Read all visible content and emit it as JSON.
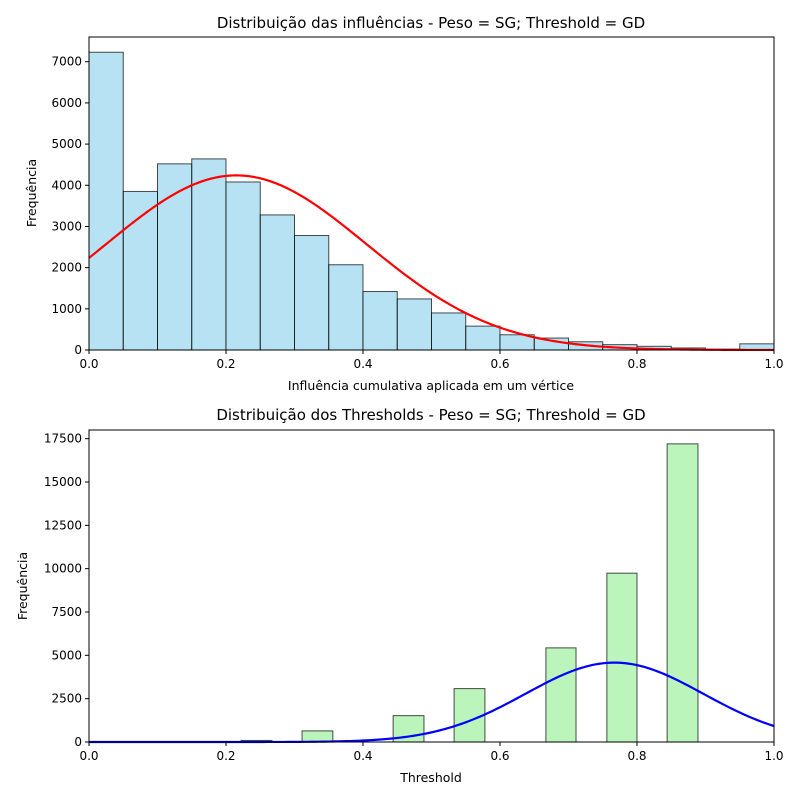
{
  "chart_data": [
    {
      "type": "bar",
      "title": "Distribuição das influências - Peso = SG; Threshold = GD",
      "xlabel": "Influência cumulativa aplicada em um vértice",
      "ylabel": "Frequência",
      "xlim": [
        0,
        1.0
      ],
      "ylim": [
        0,
        7600
      ],
      "xticks": [
        "0.0",
        "0.2",
        "0.4",
        "0.6",
        "0.8",
        "1.0"
      ],
      "yticks": [
        "0",
        "1000",
        "2000",
        "3000",
        "4000",
        "5000",
        "6000",
        "7000"
      ],
      "grid": false,
      "bar_color": "#87ceeb",
      "curve_color": "#ff0000",
      "bins": [
        {
          "x0": 0.0,
          "x1": 0.05,
          "value": 7230
        },
        {
          "x0": 0.05,
          "x1": 0.1,
          "value": 3850
        },
        {
          "x0": 0.1,
          "x1": 0.15,
          "value": 4520
        },
        {
          "x0": 0.15,
          "x1": 0.2,
          "value": 4640
        },
        {
          "x0": 0.2,
          "x1": 0.25,
          "value": 4080
        },
        {
          "x0": 0.25,
          "x1": 0.3,
          "value": 3280
        },
        {
          "x0": 0.3,
          "x1": 0.35,
          "value": 2780
        },
        {
          "x0": 0.35,
          "x1": 0.4,
          "value": 2070
        },
        {
          "x0": 0.4,
          "x1": 0.45,
          "value": 1420
        },
        {
          "x0": 0.45,
          "x1": 0.5,
          "value": 1240
        },
        {
          "x0": 0.5,
          "x1": 0.55,
          "value": 900
        },
        {
          "x0": 0.55,
          "x1": 0.6,
          "value": 580
        },
        {
          "x0": 0.6,
          "x1": 0.65,
          "value": 370
        },
        {
          "x0": 0.65,
          "x1": 0.7,
          "value": 290
        },
        {
          "x0": 0.7,
          "x1": 0.75,
          "value": 200
        },
        {
          "x0": 0.75,
          "x1": 0.8,
          "value": 130
        },
        {
          "x0": 0.8,
          "x1": 0.85,
          "value": 90
        },
        {
          "x0": 0.85,
          "x1": 0.9,
          "value": 50
        },
        {
          "x0": 0.9,
          "x1": 0.95,
          "value": 20
        },
        {
          "x0": 0.95,
          "x1": 1.0,
          "value": 150
        }
      ],
      "curve": {
        "type": "normal-fit",
        "mean": 0.215,
        "std": 0.19,
        "peak": 4240
      }
    },
    {
      "type": "bar",
      "title": "Distribuição dos Thresholds - Peso = SG; Threshold = GD",
      "xlabel": "Threshold",
      "ylabel": "Frequência",
      "xlim": [
        0,
        1.0
      ],
      "ylim": [
        0,
        18000
      ],
      "xticks": [
        "0.0",
        "0.2",
        "0.4",
        "0.6",
        "0.8",
        "1.0"
      ],
      "yticks": [
        "0",
        "2500",
        "5000",
        "7500",
        "10000",
        "12500",
        "15000",
        "17500"
      ],
      "grid": false,
      "bar_color": "#90ee90",
      "curve_color": "#0000ff",
      "bins": [
        {
          "x0": 0.222,
          "x1": 0.267,
          "value": 90
        },
        {
          "x0": 0.311,
          "x1": 0.356,
          "value": 640
        },
        {
          "x0": 0.444,
          "x1": 0.489,
          "value": 1520
        },
        {
          "x0": 0.533,
          "x1": 0.578,
          "value": 3080
        },
        {
          "x0": 0.667,
          "x1": 0.711,
          "value": 5430
        },
        {
          "x0": 0.756,
          "x1": 0.8,
          "value": 9740
        },
        {
          "x0": 0.844,
          "x1": 0.889,
          "value": 17200
        }
      ],
      "curve": {
        "type": "normal-fit",
        "mean": 0.767,
        "std": 0.13,
        "peak": 4580
      }
    }
  ]
}
